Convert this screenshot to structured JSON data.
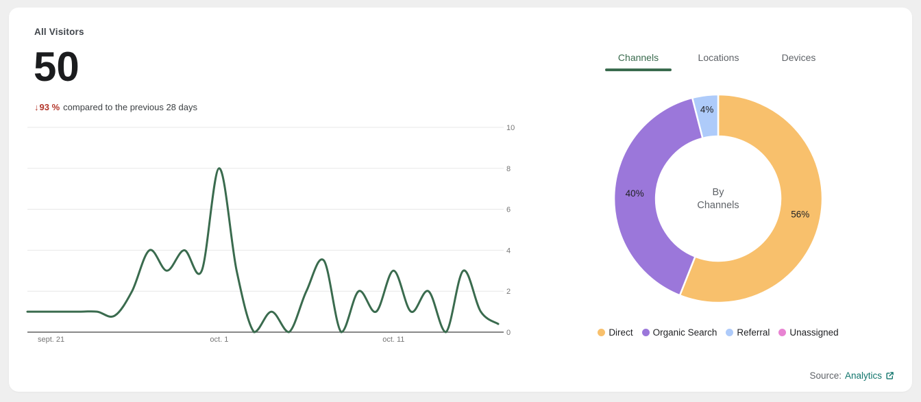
{
  "header": {
    "title": "All Visitors",
    "value": "50",
    "delta": {
      "arrow": "↓",
      "percent": "93 %",
      "suffix": "compared to the previous 28 days"
    }
  },
  "tabs": [
    {
      "label": "Channels",
      "active": true
    },
    {
      "label": "Locations",
      "active": false
    },
    {
      "label": "Devices",
      "active": false
    }
  ],
  "chart_data": [
    {
      "name": "visitors-over-time",
      "type": "line",
      "title": "All Visitors",
      "ylabel": "",
      "xlabel": "",
      "ylim": [
        0,
        10
      ],
      "yticks": [
        0,
        2,
        4,
        6,
        8,
        10
      ],
      "grid": true,
      "x_tick_labels": [
        {
          "label": "sept. 21",
          "index": 0
        },
        {
          "label": "oct. 1",
          "index": 11
        },
        {
          "label": "oct. 11",
          "index": 21
        }
      ],
      "values": [
        1,
        1,
        1,
        1,
        1,
        0.8,
        2,
        4,
        3,
        4,
        3,
        8,
        3,
        0,
        1,
        0,
        2,
        3.5,
        0,
        2,
        1,
        3,
        1,
        2,
        0,
        3,
        1,
        0.4
      ]
    },
    {
      "name": "by-channels",
      "type": "donut",
      "title": "By Channels",
      "center_label": [
        "By",
        "Channels"
      ],
      "legend_position": "bottom",
      "segments": [
        {
          "label": "Direct",
          "value_pct": 56,
          "color": "#f8c06c"
        },
        {
          "label": "Organic Search",
          "value_pct": 40,
          "color": "#9b77da"
        },
        {
          "label": "Referral",
          "value_pct": 4,
          "color": "#aecbfa"
        },
        {
          "label": "Unassigned",
          "value_pct": 0,
          "color": "#e883d2"
        }
      ]
    }
  ],
  "source": {
    "prefix": "Source:",
    "link_label": "Analytics"
  },
  "colors": {
    "accent_green": "#3a6b4e",
    "delta_red": "#b3362b",
    "link_teal": "#11756c",
    "axis_label_gray": "#757575",
    "grid_gray": "#e7e7e7",
    "axis_line": "#404040",
    "donut_label": "#202124",
    "donut_center_gray": "#5f6368"
  }
}
